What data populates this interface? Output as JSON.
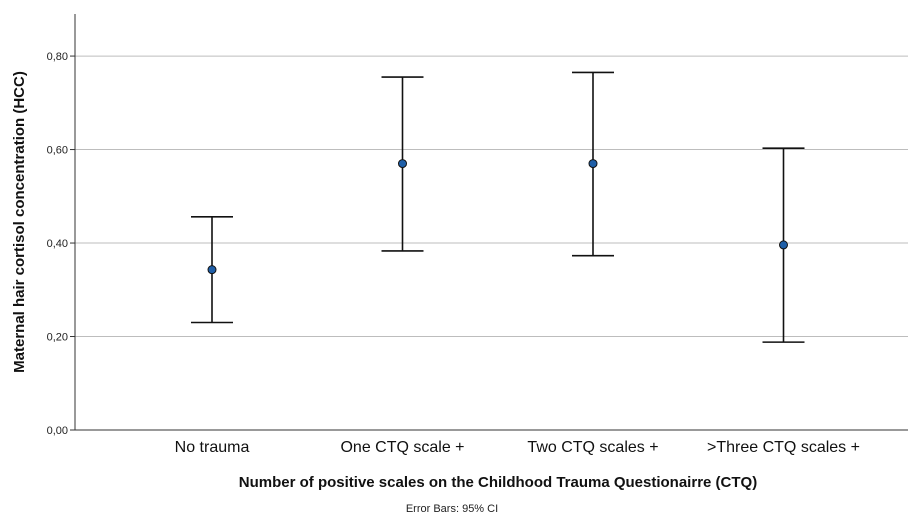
{
  "chart_data": {
    "type": "errorbar",
    "categories": [
      "No trauma",
      "One CTQ scale +",
      "Two CTQ scales +",
      ">Three CTQ scales +"
    ],
    "series": [
      {
        "values": [
          0.343,
          0.57,
          0.57,
          0.396
        ],
        "ci_low": [
          0.23,
          0.383,
          0.373,
          0.188
        ],
        "ci_high": [
          0.456,
          0.755,
          0.765,
          0.603
        ],
        "color": "#1f5fa8"
      }
    ],
    "xlabel": "Number of positive scales on the Childhood Trauma Questionairre (CTQ)",
    "ylabel": "Maternal hair cortisol concentration (HCC)",
    "ylim": [
      0,
      0.89
    ],
    "yticks": [
      0.0,
      0.2,
      0.4,
      0.6,
      0.8
    ],
    "ytick_labels": [
      "0,00",
      "0,20",
      "0,40",
      "0,60",
      "0,80"
    ],
    "grid": true,
    "footnote": "Error Bars: 95% CI"
  }
}
